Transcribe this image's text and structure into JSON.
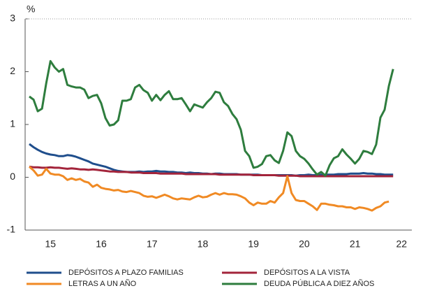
{
  "chart_data": {
    "type": "line",
    "y_unit_label": "%",
    "categories": [
      null,
      null,
      null,
      null,
      null,
      "15",
      null,
      null,
      null,
      null,
      null,
      null,
      null,
      null,
      null,
      null,
      null,
      "16",
      null,
      null,
      null,
      null,
      null,
      null,
      null,
      null,
      null,
      null,
      null,
      "17",
      null,
      null,
      null,
      null,
      null,
      null,
      null,
      null,
      null,
      null,
      null,
      "18",
      null,
      null,
      null,
      null,
      null,
      null,
      null,
      null,
      null,
      null,
      null,
      "19",
      null,
      null,
      null,
      null,
      null,
      null,
      null,
      null,
      null,
      null,
      null,
      "20",
      null,
      null,
      null,
      null,
      null,
      null,
      null,
      null,
      null,
      null,
      null,
      "21",
      null,
      null,
      null,
      null,
      null,
      null,
      null,
      null,
      null,
      null,
      "22",
      null
    ],
    "ylim": [
      -1,
      3
    ],
    "yticks": [
      -1,
      0,
      1,
      2,
      3
    ],
    "series": [
      {
        "name": "DEPÓSITOS A PLAZO FAMILIAS",
        "color": "#1f4e8c",
        "values": [
          0.63,
          0.57,
          0.52,
          0.48,
          0.45,
          0.43,
          0.42,
          0.4,
          0.4,
          0.42,
          0.41,
          0.39,
          0.36,
          0.33,
          0.3,
          0.26,
          0.24,
          0.22,
          0.2,
          0.17,
          0.14,
          0.12,
          0.11,
          0.1,
          0.1,
          0.1,
          0.11,
          0.1,
          0.11,
          0.11,
          0.12,
          0.11,
          0.11,
          0.1,
          0.1,
          0.09,
          0.09,
          0.08,
          0.09,
          0.08,
          0.08,
          0.07,
          0.07,
          0.06,
          0.07,
          0.07,
          0.06,
          0.06,
          0.06,
          0.06,
          0.05,
          0.05,
          0.05,
          0.05,
          0.05,
          0.04,
          0.04,
          0.04,
          0.04,
          0.04,
          0.04,
          0.04,
          0.04,
          0.03,
          0.04,
          0.04,
          0.05,
          0.04,
          0.04,
          0.05,
          0.05,
          0.05,
          0.05,
          0.06,
          0.06,
          0.06,
          0.07,
          0.07,
          0.07,
          0.08,
          0.07,
          0.07,
          0.06,
          0.06,
          0.05,
          0.05,
          0.05,
          null,
          null,
          null
        ]
      },
      {
        "name": "DEPÓSITOS A LA VISTA",
        "color": "#a3243b",
        "values": [
          0.2,
          0.19,
          0.19,
          0.18,
          0.18,
          0.19,
          0.18,
          0.18,
          0.17,
          0.16,
          0.17,
          0.16,
          0.15,
          0.15,
          0.14,
          0.15,
          0.14,
          0.13,
          0.12,
          0.11,
          0.11,
          0.1,
          0.1,
          0.1,
          0.09,
          0.09,
          0.09,
          0.08,
          0.08,
          0.08,
          0.08,
          0.07,
          0.07,
          0.07,
          0.07,
          0.07,
          0.07,
          0.06,
          0.06,
          0.06,
          0.06,
          0.06,
          0.06,
          0.06,
          0.06,
          0.05,
          0.05,
          0.05,
          0.05,
          0.05,
          0.05,
          0.05,
          0.05,
          0.04,
          0.04,
          0.04,
          0.04,
          0.04,
          0.04,
          0.03,
          0.03,
          0.03,
          0.03,
          0.03,
          0.02,
          0.02,
          0.02,
          0.02,
          0.02,
          0.02,
          0.02,
          0.02,
          0.02,
          0.02,
          0.02,
          0.02,
          0.02,
          0.02,
          0.02,
          0.02,
          0.02,
          0.02,
          0.02,
          0.02,
          0.02,
          0.02,
          0.02,
          null,
          null,
          null
        ]
      },
      {
        "name": "LETRAS A UN AÑO",
        "color": "#f08a24",
        "values": [
          0.2,
          0.13,
          0.03,
          0.05,
          0.16,
          0.07,
          0.05,
          0.05,
          0.02,
          -0.05,
          -0.02,
          -0.05,
          -0.03,
          -0.08,
          -0.1,
          -0.18,
          -0.14,
          -0.2,
          -0.22,
          -0.23,
          -0.25,
          -0.24,
          -0.27,
          -0.28,
          -0.26,
          -0.28,
          -0.3,
          -0.35,
          -0.37,
          -0.36,
          -0.39,
          -0.36,
          -0.33,
          -0.36,
          -0.4,
          -0.42,
          -0.4,
          -0.41,
          -0.42,
          -0.38,
          -0.35,
          -0.38,
          -0.37,
          -0.33,
          -0.3,
          -0.33,
          -0.3,
          -0.32,
          -0.32,
          -0.33,
          -0.36,
          -0.4,
          -0.48,
          -0.53,
          -0.48,
          -0.5,
          -0.5,
          -0.45,
          -0.48,
          -0.38,
          -0.3,
          0.02,
          -0.3,
          -0.43,
          -0.45,
          -0.45,
          -0.5,
          -0.55,
          -0.62,
          -0.5,
          -0.5,
          -0.52,
          -0.53,
          -0.55,
          -0.55,
          -0.57,
          -0.57,
          -0.6,
          -0.57,
          -0.58,
          -0.6,
          -0.63,
          -0.58,
          -0.55,
          -0.48,
          -0.46,
          null,
          null,
          null,
          null
        ]
      },
      {
        "name": "DEUDA PÚBLICA A DIEZ AÑOS",
        "color": "#2e7d3e",
        "values": [
          1.53,
          1.47,
          1.25,
          1.3,
          1.78,
          2.2,
          2.08,
          2.0,
          2.05,
          1.75,
          1.72,
          1.7,
          1.7,
          1.66,
          1.5,
          1.54,
          1.56,
          1.4,
          1.12,
          0.98,
          1.0,
          1.08,
          1.45,
          1.45,
          1.48,
          1.7,
          1.75,
          1.65,
          1.6,
          1.45,
          1.56,
          1.46,
          1.56,
          1.63,
          1.48,
          1.48,
          1.5,
          1.38,
          1.25,
          1.38,
          1.35,
          1.32,
          1.42,
          1.5,
          1.62,
          1.6,
          1.42,
          1.35,
          1.2,
          1.1,
          0.9,
          0.5,
          0.4,
          0.18,
          0.2,
          0.25,
          0.4,
          0.42,
          0.32,
          0.27,
          0.5,
          0.85,
          0.78,
          0.5,
          0.4,
          0.35,
          0.26,
          0.15,
          0.05,
          0.1,
          0.03,
          0.23,
          0.36,
          0.4,
          0.53,
          0.43,
          0.35,
          0.26,
          0.35,
          0.5,
          0.48,
          0.44,
          0.62,
          1.13,
          1.28,
          1.73,
          2.05,
          null,
          null,
          null
        ]
      }
    ]
  }
}
